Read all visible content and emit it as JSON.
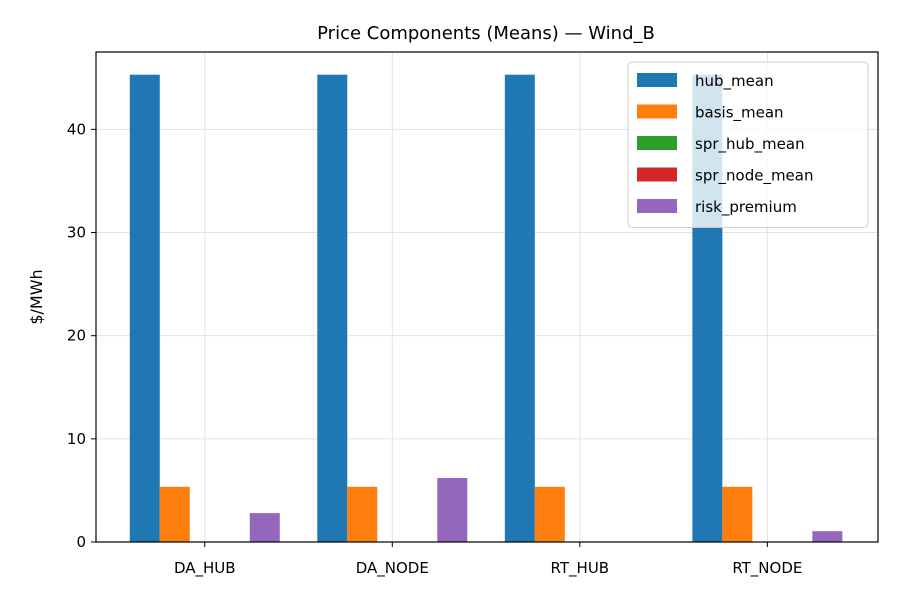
{
  "chart_data": {
    "type": "bar",
    "title": "Price Components (Means) — Wind_B",
    "xlabel": "",
    "ylabel": "$/MWh",
    "categories": [
      "DA_HUB",
      "DA_NODE",
      "RT_HUB",
      "RT_NODE"
    ],
    "ylim": [
      0,
      47.5
    ],
    "yticks": [
      0,
      10,
      20,
      30,
      40
    ],
    "grid": true,
    "legend_position": "top-right",
    "series": [
      {
        "name": "hub_mean",
        "color": "#1f77b4",
        "values": [
          45.3,
          45.3,
          45.3,
          45.3
        ]
      },
      {
        "name": "basis_mean",
        "color": "#ff7f0e",
        "values": [
          5.35,
          5.35,
          5.35,
          5.35
        ]
      },
      {
        "name": "spr_hub_mean",
        "color": "#2ca02c",
        "values": [
          0,
          0,
          0,
          0
        ]
      },
      {
        "name": "spr_node_mean",
        "color": "#d62728",
        "values": [
          0,
          0,
          0,
          0
        ]
      },
      {
        "name": "risk_premium",
        "color": "#9467bd",
        "values": [
          2.8,
          6.2,
          0,
          1.05
        ]
      }
    ]
  }
}
